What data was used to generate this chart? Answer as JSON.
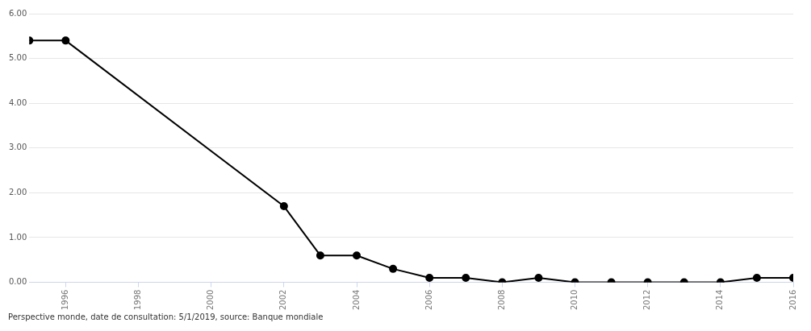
{
  "chart_data": {
    "type": "line",
    "x": [
      1995,
      1996,
      2002,
      2003,
      2004,
      2005,
      2006,
      2007,
      2008,
      2009,
      2010,
      2011,
      2012,
      2013,
      2014,
      2015,
      2016
    ],
    "series": [
      {
        "color": "#000000",
        "values": [
          5.4,
          5.4,
          1.7,
          0.6,
          0.6,
          0.3,
          0.1,
          0.1,
          0,
          0.1,
          0,
          0,
          0,
          0,
          0,
          0.1,
          0.1
        ]
      }
    ],
    "xlim": [
      1995,
      2016
    ],
    "xticks": [
      1996,
      1998,
      2000,
      2002,
      2004,
      2006,
      2008,
      2010,
      2012,
      2014,
      2016
    ],
    "ylim": [
      0,
      6
    ],
    "yticks": [
      {
        "value": 0,
        "label": "0.00"
      },
      {
        "value": 1,
        "label": "1.00"
      },
      {
        "value": 2,
        "label": "2.00"
      },
      {
        "value": 3,
        "label": "3.00"
      },
      {
        "value": 4,
        "label": "4.00"
      },
      {
        "value": 5,
        "label": "5.00"
      },
      {
        "value": 6,
        "label": "6.00"
      }
    ],
    "grid": "y",
    "marker": "circle",
    "line_style": "solid",
    "legend": false,
    "annotations": [
      "Perspective monde, date de consultation: 5/1/2019, source: Banque mondiale"
    ]
  }
}
